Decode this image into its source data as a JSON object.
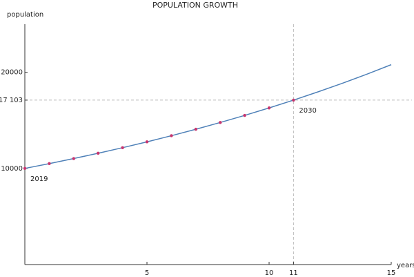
{
  "chart_data": {
    "type": "line",
    "title": "POPULATION GROWTH",
    "x_label": "years",
    "y_label": "population",
    "xlim": [
      0,
      15
    ],
    "ylim": [
      0,
      25000
    ],
    "xticks": [
      5,
      10,
      11,
      15
    ],
    "yticks": [
      10000,
      {
        "value": 17103,
        "label": "17 103"
      },
      20000
    ],
    "guides": {
      "x": 11,
      "y": 17103
    },
    "series": [
      {
        "name": "curve",
        "style": "line",
        "color": "#4f81b8",
        "x": [
          0,
          1,
          2,
          3,
          4,
          5,
          6,
          7,
          8,
          9,
          10,
          11,
          12,
          13,
          14,
          15
        ],
        "values": [
          10000,
          10500,
          11025,
          11576,
          12155,
          12763,
          13401,
          14071,
          14775,
          15513,
          16289,
          17103,
          17959,
          18856,
          19799,
          20789
        ]
      },
      {
        "name": "points",
        "style": "points",
        "color": "#c8356e",
        "x": [
          0,
          1,
          2,
          3,
          4,
          5,
          6,
          7,
          8,
          9,
          10,
          11
        ],
        "values": [
          10000,
          10500,
          11025,
          11576,
          12155,
          12763,
          13401,
          14071,
          14775,
          15513,
          16289,
          17103
        ]
      }
    ],
    "annotations": [
      {
        "text": "2019",
        "x": 0,
        "y": 10000
      },
      {
        "text": "2030",
        "x": 11,
        "y": 17103
      }
    ]
  }
}
